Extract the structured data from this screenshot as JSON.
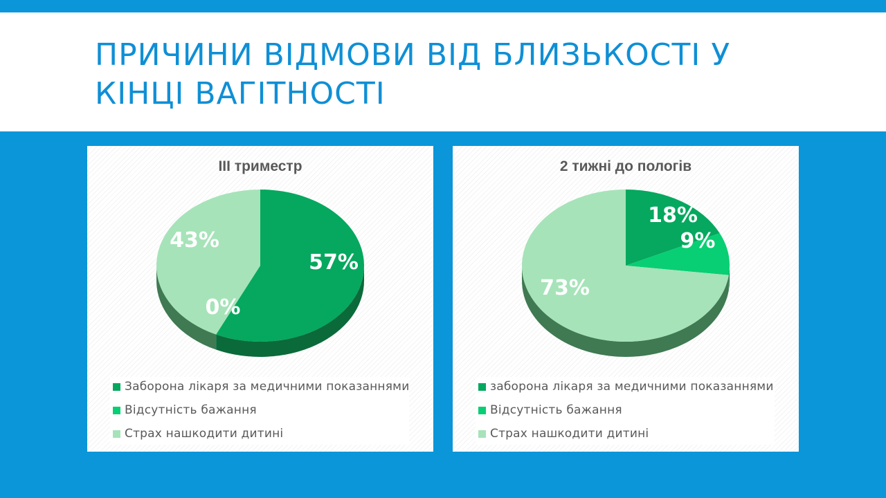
{
  "slide": {
    "title": "Причини відмови від близькості у кінці вагітності"
  },
  "colors": {
    "background": "#0a96d9",
    "title": "#0f8fd5"
  },
  "chart_data": [
    {
      "type": "pie",
      "title": "III триместр",
      "categories": [
        "Заборона лікаря за медичними показаннями",
        "Відсутність бажання",
        "Страх нашкодити дитині"
      ],
      "values": [
        57,
        0,
        43
      ],
      "labels": [
        "57%",
        "0%",
        "43%"
      ],
      "colors": [
        "#05a85e",
        "#08cf73",
        "#a6e3b9"
      ],
      "side_colors": [
        "#0a6a3a",
        "#0b7a45",
        "#3f7a52"
      ],
      "legend_position": "bottom"
    },
    {
      "type": "pie",
      "title": "2 тижні до пологів",
      "categories": [
        "заборона лікаря за медичними показаннями",
        "Відсутність бажання",
        "Страх нашкодити дитині"
      ],
      "values": [
        18,
        9,
        73
      ],
      "labels": [
        "18%",
        "9%",
        "73%"
      ],
      "colors": [
        "#05a85e",
        "#08cf73",
        "#a6e3b9"
      ],
      "side_colors": [
        "#0a6a3a",
        "#0b7a45",
        "#3f7a52"
      ],
      "legend_position": "bottom"
    }
  ]
}
